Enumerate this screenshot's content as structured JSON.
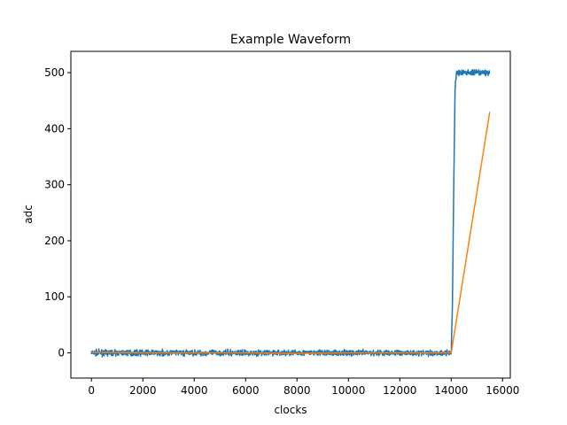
{
  "chart_data": {
    "type": "line",
    "title": "Example Waveform",
    "xlabel": "clocks",
    "ylabel": "adc",
    "xlim": [
      -800,
      16300
    ],
    "ylim": [
      -45,
      538
    ],
    "xticks": [
      0,
      2000,
      4000,
      6000,
      8000,
      10000,
      12000,
      14000,
      16000
    ],
    "yticks": [
      0,
      100,
      200,
      300,
      400,
      500
    ],
    "grid": false,
    "series": [
      {
        "color": "#1f77b4",
        "noise": true,
        "x": [
          0,
          14000,
          14050,
          14100,
          14150,
          14200,
          14250,
          14300,
          14500,
          15000,
          15500
        ],
        "y": [
          0,
          0,
          90,
          300,
          470,
          500,
          500,
          500,
          500,
          500,
          500
        ]
      },
      {
        "color": "#ff7f0e",
        "noise": false,
        "x": [
          0,
          2000,
          4000,
          6000,
          8000,
          10000,
          12000,
          14000,
          15500
        ],
        "y": [
          1,
          0,
          0,
          0,
          -1,
          0,
          0,
          0,
          430
        ]
      }
    ]
  }
}
